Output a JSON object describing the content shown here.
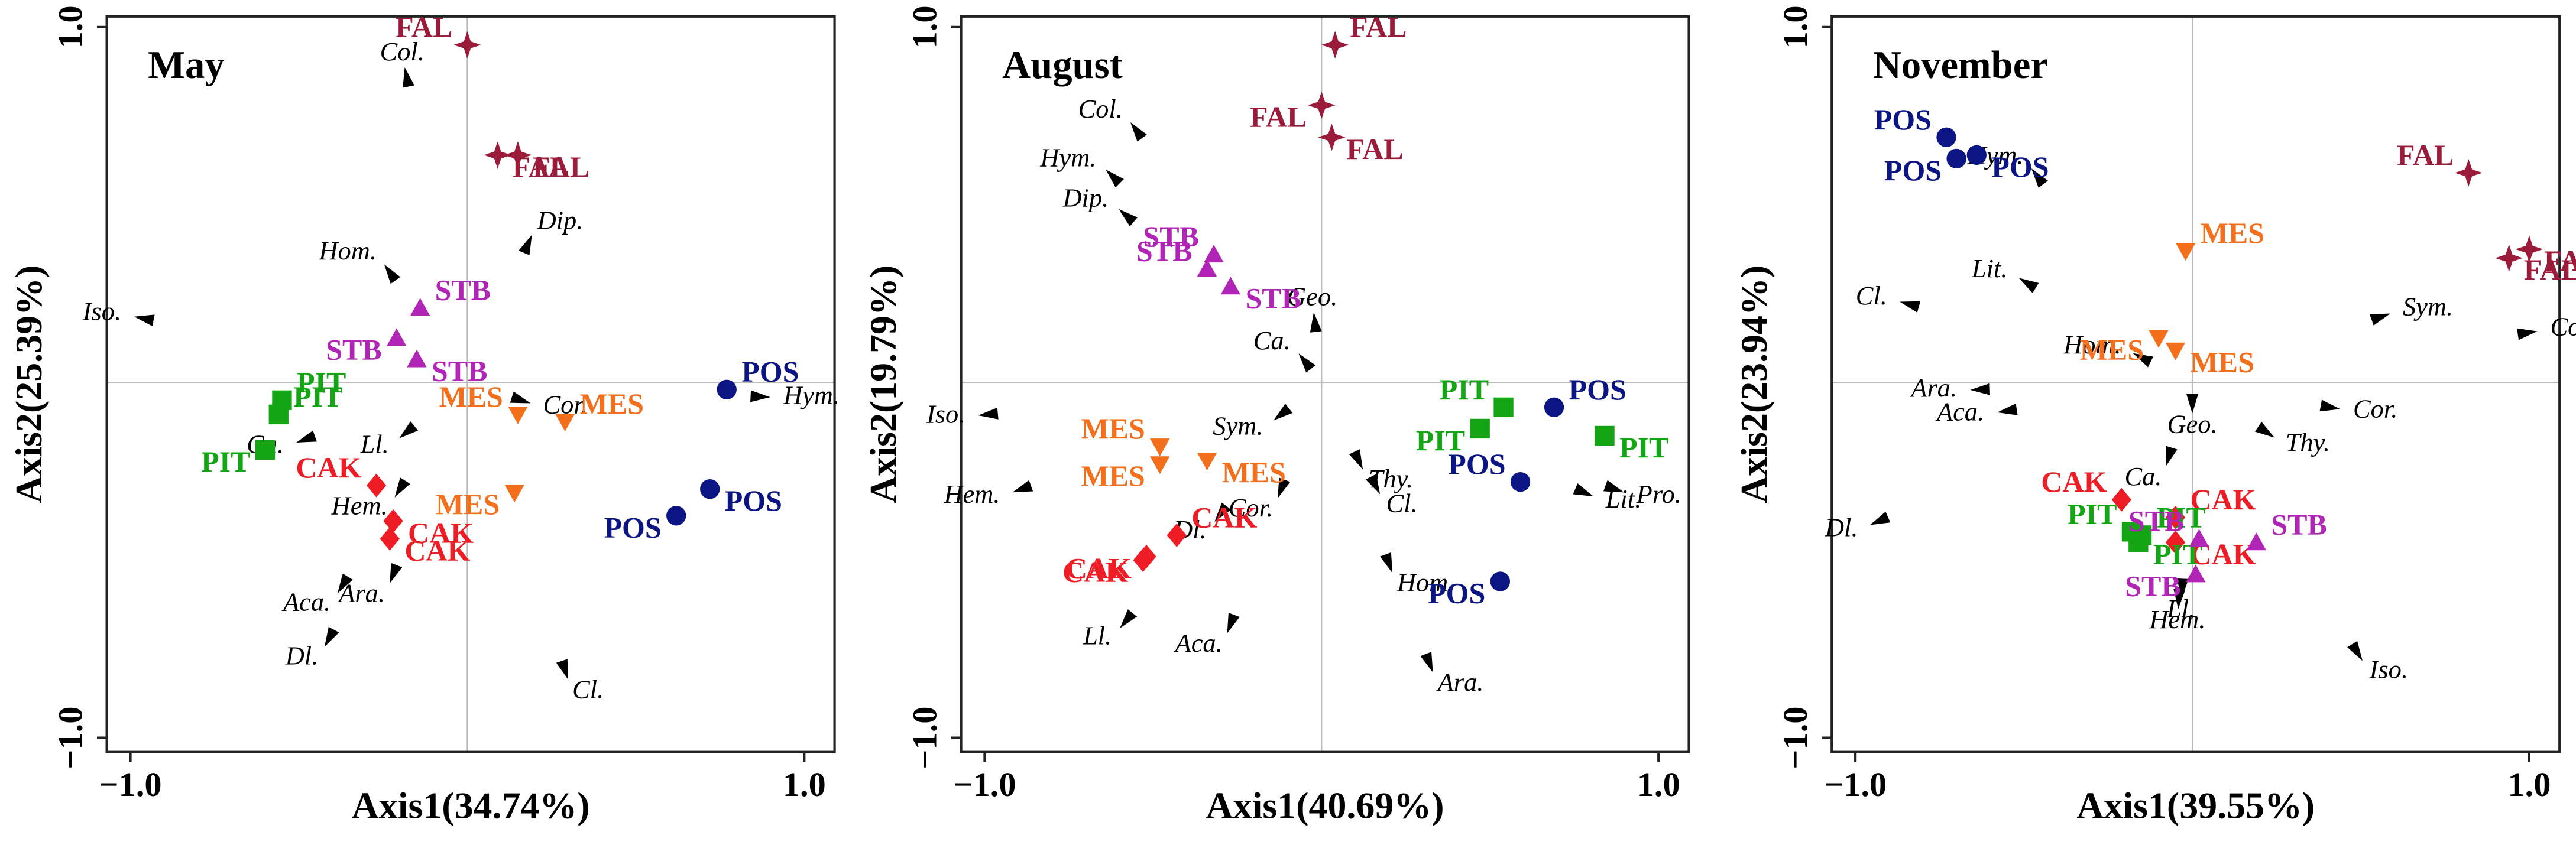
{
  "chart_data": [
    {
      "type": "scatter",
      "title": "May",
      "xlabel": "Axis1(34.74%)",
      "ylabel": "Axis2(25.39%)",
      "xlim": [
        -1.07,
        1.09
      ],
      "ylim": [
        -1.04,
        1.03
      ],
      "xticks": [
        {
          "value": -1,
          "label": "−1.0"
        },
        {
          "value": 1,
          "label": "1.0"
        }
      ],
      "yticks": [
        {
          "value": -1,
          "label": "−1.0"
        },
        {
          "value": 1,
          "label": "1.0"
        }
      ],
      "series": [
        {
          "color": "#9b1b3a",
          "marker": "star",
          "x": [
            0,
            0.09,
            0.15
          ],
          "y": [
            0.95,
            0.64,
            0.64
          ],
          "labels": [
            "FAL",
            "FAL",
            "FAL"
          ]
        },
        {
          "color": "#b025b5",
          "marker": "triangle-up",
          "x": [
            -0.14,
            -0.21,
            -0.15
          ],
          "y": [
            0.21,
            0.125,
            0.065
          ],
          "labels": [
            "STB",
            "STB",
            "STB"
          ]
        },
        {
          "color": "#13a513",
          "marker": "square",
          "x": [
            -0.55,
            -0.56,
            -0.6
          ],
          "y": [
            -0.05,
            -0.09,
            -0.19
          ],
          "labels": [
            "PIT",
            "PIT",
            "PIT"
          ]
        },
        {
          "color": "#ee1c25",
          "marker": "diamond",
          "x": [
            -0.27,
            -0.22,
            -0.23
          ],
          "y": [
            -0.29,
            -0.39,
            -0.44
          ],
          "labels": [
            "CAK",
            "CAK",
            "CAK"
          ]
        },
        {
          "color": "#f36f1c",
          "marker": "triangle-down",
          "x": [
            0.15,
            0.29,
            0.14
          ],
          "y": [
            -0.09,
            -0.11,
            -0.31
          ],
          "labels": [
            "MES",
            "MES",
            "MES"
          ]
        },
        {
          "color": "#0b1583",
          "marker": "circle",
          "x": [
            0.77,
            0.72,
            0.62
          ],
          "y": [
            -0.02,
            -0.3,
            -0.375
          ],
          "labels": [
            "POS",
            "POS",
            "POS"
          ]
        }
      ],
      "species": {
        "color": "#000000",
        "labels": [
          "Col.",
          "Dip.",
          "Hom.",
          "Iso.",
          "Hym.",
          "Cor.",
          "Ca.",
          "Ll.",
          "Hem.",
          "Aca.",
          "Ara.",
          "Dl.",
          "Cl."
        ],
        "x": [
          -0.18,
          0.18,
          -0.23,
          -0.96,
          0.87,
          0.16,
          -0.48,
          -0.18,
          -0.2,
          -0.37,
          -0.22,
          -0.41,
          0.29
        ],
        "y": [
          0.86,
          0.39,
          0.31,
          0.18,
          -0.04,
          -0.05,
          -0.16,
          -0.14,
          -0.3,
          -0.57,
          -0.54,
          -0.72,
          -0.81
        ]
      }
    },
    {
      "type": "scatter",
      "title": "August",
      "xlabel": "Axis1(40.69%)",
      "ylabel": "Axis2(19.79%)",
      "xlim": [
        -1.07,
        1.09
      ],
      "ylim": [
        -1.04,
        1.03
      ],
      "xticks": [
        {
          "value": -1,
          "label": "−1.0"
        },
        {
          "value": 1,
          "label": "1.0"
        }
      ],
      "yticks": [
        {
          "value": -1,
          "label": "−1.0"
        },
        {
          "value": 1,
          "label": "1.0"
        }
      ],
      "series": [
        {
          "color": "#9b1b3a",
          "marker": "star",
          "x": [
            0.04,
            0,
            0.03
          ],
          "y": [
            0.95,
            0.78,
            0.69
          ],
          "labels": [
            "FAL",
            "FAL",
            "FAL"
          ]
        },
        {
          "color": "#b025b5",
          "marker": "triangle-up",
          "x": [
            -0.32,
            -0.34,
            -0.27
          ],
          "y": [
            0.36,
            0.32,
            0.27
          ],
          "labels": [
            "STB",
            "STB",
            "STB"
          ]
        },
        {
          "color": "#13a513",
          "marker": "square",
          "x": [
            0.54,
            0.47,
            0.84
          ],
          "y": [
            -0.07,
            -0.13,
            -0.15
          ],
          "labels": [
            "PIT",
            "PIT",
            "PIT"
          ]
        },
        {
          "color": "#0b1583",
          "marker": "circle",
          "x": [
            0.69,
            0.59,
            0.53
          ],
          "y": [
            -0.07,
            -0.28,
            -0.56
          ],
          "labels": [
            "POS",
            "POS",
            "POS"
          ]
        },
        {
          "color": "#f36f1c",
          "marker": "triangle-down",
          "x": [
            -0.48,
            -0.48,
            -0.34
          ],
          "y": [
            -0.18,
            -0.23,
            -0.22
          ],
          "labels": [
            "MES",
            "MES",
            "MES"
          ]
        },
        {
          "color": "#ee1c25",
          "marker": "diamond",
          "x": [
            -0.43,
            -0.52,
            -0.53
          ],
          "y": [
            -0.43,
            -0.49,
            -0.5
          ],
          "labels": [
            "CAK",
            "CAK",
            "CAK"
          ]
        }
      ],
      "species": {
        "color": "#000000",
        "labels": [
          "Col.",
          "Hym.",
          "Dip.",
          "Geo.",
          "Ca.",
          "Iso.",
          "Sym.",
          "Hem.",
          "Dl.",
          "Cor.",
          "Thy.",
          "Cl.",
          "Pro.",
          "Lit.",
          "Hom.",
          "Ll.",
          "Aca.",
          "Ara."
        ],
        "x": [
          -0.55,
          -0.62,
          -0.58,
          -0.02,
          -0.05,
          -0.99,
          -0.12,
          -0.89,
          -0.3,
          -0.12,
          0.11,
          0.16,
          0.87,
          0.78,
          0.2,
          -0.58,
          -0.27,
          0.32
        ],
        "y": [
          0.71,
          0.58,
          0.47,
          0.17,
          0.06,
          -0.09,
          -0.09,
          -0.3,
          -0.37,
          -0.3,
          -0.22,
          -0.29,
          -0.3,
          -0.31,
          -0.51,
          -0.67,
          -0.68,
          -0.79
        ]
      }
    },
    {
      "type": "scatter",
      "title": "November",
      "xlabel": "Axis1(39.55%)",
      "ylabel": "Axis2(23.94%)",
      "xlim": [
        -1.07,
        1.09
      ],
      "ylim": [
        -1.04,
        1.03
      ],
      "xticks": [
        {
          "value": -1,
          "label": "−1.0"
        },
        {
          "value": 1,
          "label": "1.0"
        }
      ],
      "yticks": [
        {
          "value": -1,
          "label": "−1.0"
        },
        {
          "value": 1,
          "label": "1.0"
        }
      ],
      "series": [
        {
          "color": "#0b1583",
          "marker": "circle",
          "x": [
            -0.73,
            -0.7,
            -0.64
          ],
          "y": [
            0.69,
            0.63,
            0.64
          ],
          "labels": [
            "POS",
            "POS",
            "POS"
          ]
        },
        {
          "color": "#9b1b3a",
          "marker": "star",
          "x": [
            0.82,
            0.94,
            1.0
          ],
          "y": [
            0.59,
            0.35,
            0.375
          ],
          "labels": [
            "FAL",
            "FAL",
            "FAL"
          ]
        },
        {
          "color": "#f36f1c",
          "marker": "triangle-down",
          "x": [
            -0.02,
            -0.1,
            -0.05
          ],
          "y": [
            0.37,
            0.125,
            0.09
          ],
          "labels": [
            "MES",
            "MES",
            "MES"
          ]
        },
        {
          "color": "#ee1c25",
          "marker": "diamond",
          "x": [
            -0.21,
            -0.05,
            -0.05
          ],
          "y": [
            -0.33,
            -0.38,
            -0.45
          ],
          "labels": [
            "CAK",
            "CAK",
            "CAK"
          ]
        },
        {
          "color": "#13a513",
          "marker": "square",
          "x": [
            -0.18,
            -0.15,
            -0.16
          ],
          "y": [
            -0.42,
            -0.43,
            -0.45
          ],
          "labels": [
            "PIT",
            "PIT",
            "PIT"
          ]
        },
        {
          "color": "#b025b5",
          "marker": "triangle-up",
          "x": [
            0.02,
            0.19,
            0.01
          ],
          "y": [
            -0.44,
            -0.45,
            -0.54
          ],
          "labels": [
            "STB",
            "STB",
            "STB"
          ]
        }
      ],
      "species": {
        "color": "#000000",
        "labels": [
          "Hym.",
          "Cl.",
          "Lit.",
          "Sym.",
          "Col.",
          "Hom.",
          "Ara.",
          "Aca.",
          "Cor.",
          "Geo.",
          "Thy.",
          "Ca.",
          "Dl.",
          "Hem.",
          "Ll.",
          "Iso."
        ],
        "x": [
          -0.46,
          -0.84,
          -0.49,
          0.56,
          0.995,
          -0.15,
          -0.63,
          -0.55,
          0.41,
          0,
          0.22,
          -0.07,
          -0.93,
          -0.04,
          -0.03,
          0.49
        ],
        "y": [
          0.58,
          0.22,
          0.28,
          0.185,
          0.14,
          0.07,
          -0.02,
          -0.08,
          -0.07,
          -0.06,
          -0.14,
          -0.21,
          -0.39,
          -0.61,
          -0.58,
          -0.76
        ]
      }
    }
  ]
}
